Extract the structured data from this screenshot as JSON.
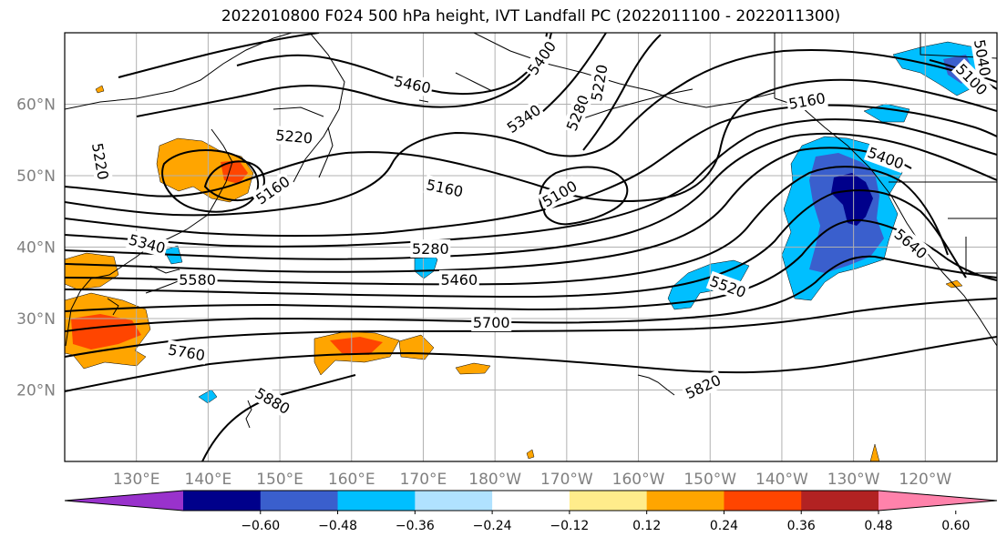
{
  "title": "2022010800 F024 500 hPa height, IVT Landfall PC (2022011100 - 2022011300)",
  "map": {
    "lon_range": [
      120,
      250
    ],
    "lat_range": [
      10,
      70
    ],
    "lon_ticks": [
      {
        "lon": 130,
        "label": "130°E"
      },
      {
        "lon": 140,
        "label": "140°E"
      },
      {
        "lon": 150,
        "label": "150°E"
      },
      {
        "lon": 160,
        "label": "160°E"
      },
      {
        "lon": 170,
        "label": "170°E"
      },
      {
        "lon": 180,
        "label": "180°W"
      },
      {
        "lon": 190,
        "label": "170°W"
      },
      {
        "lon": 200,
        "label": "160°W"
      },
      {
        "lon": 210,
        "label": "150°W"
      },
      {
        "lon": 220,
        "label": "140°W"
      },
      {
        "lon": 230,
        "label": "130°W"
      },
      {
        "lon": 240,
        "label": "120°W"
      }
    ],
    "lat_ticks": [
      {
        "lat": 20,
        "label": "20°N"
      },
      {
        "lat": 30,
        "label": "30°N"
      },
      {
        "lat": 40,
        "label": "40°N"
      },
      {
        "lat": 50,
        "label": "50°N"
      },
      {
        "lat": 60,
        "label": "60°N"
      }
    ],
    "contour_labels": [
      {
        "text": "5460",
        "lon": 168.5,
        "lat": 62.8,
        "rot": 12
      },
      {
        "text": "5400",
        "lon": 186.5,
        "lat": 66.5,
        "rot": -55
      },
      {
        "text": "5340",
        "lon": 184,
        "lat": 58,
        "rot": -35
      },
      {
        "text": "5280",
        "lon": 191.5,
        "lat": 58.8,
        "rot": -68
      },
      {
        "text": "5220",
        "lon": 194.5,
        "lat": 63,
        "rot": -80
      },
      {
        "text": "5220",
        "lon": 152,
        "lat": 55.5,
        "rot": 5
      },
      {
        "text": "5220",
        "lon": 125,
        "lat": 52,
        "rot": 80
      },
      {
        "text": "5160",
        "lon": 173,
        "lat": 48.3,
        "rot": 12
      },
      {
        "text": "5160",
        "lon": 149,
        "lat": 48,
        "rot": -35
      },
      {
        "text": "5160",
        "lon": 223.5,
        "lat": 60.5,
        "rot": -10
      },
      {
        "text": "5100",
        "lon": 189,
        "lat": 47.5,
        "rot": -30
      },
      {
        "text": "5100",
        "lon": 246.5,
        "lat": 63.5,
        "rot": 45
      },
      {
        "text": "5040",
        "lon": 248,
        "lat": 66.5,
        "rot": 80
      },
      {
        "text": "5400",
        "lon": 234.5,
        "lat": 52.5,
        "rot": 20
      },
      {
        "text": "5640",
        "lon": 238,
        "lat": 40.5,
        "rot": 40
      },
      {
        "text": "5340",
        "lon": 131.5,
        "lat": 40.5,
        "rot": 15
      },
      {
        "text": "5280",
        "lon": 171,
        "lat": 39.8,
        "rot": 0
      },
      {
        "text": "5580",
        "lon": 138.5,
        "lat": 35.5,
        "rot": 0
      },
      {
        "text": "5460",
        "lon": 175,
        "lat": 35.5,
        "rot": 0
      },
      {
        "text": "5520",
        "lon": 212.5,
        "lat": 34.5,
        "rot": 20
      },
      {
        "text": "5700",
        "lon": 179.5,
        "lat": 29.5,
        "rot": 0
      },
      {
        "text": "5760",
        "lon": 137,
        "lat": 25.3,
        "rot": 10
      },
      {
        "text": "5820",
        "lon": 209,
        "lat": 20.5,
        "rot": -25
      },
      {
        "text": "5880",
        "lon": 149,
        "lat": 18.5,
        "rot": 30
      }
    ]
  },
  "colorbar": {
    "colors": [
      "#9932cc",
      "#00008b",
      "#3a5fcd",
      "#00bfff",
      "#b0e2ff",
      "#ffffff",
      "#ffec8b",
      "#ffa500",
      "#ff4500",
      "#b22222",
      "#ff82ab"
    ],
    "labels": [
      "−0.60",
      "−0.48",
      "−0.36",
      "−0.24",
      "−0.12",
      "0.12",
      "0.24",
      "0.36",
      "0.48",
      "0.60"
    ]
  }
}
